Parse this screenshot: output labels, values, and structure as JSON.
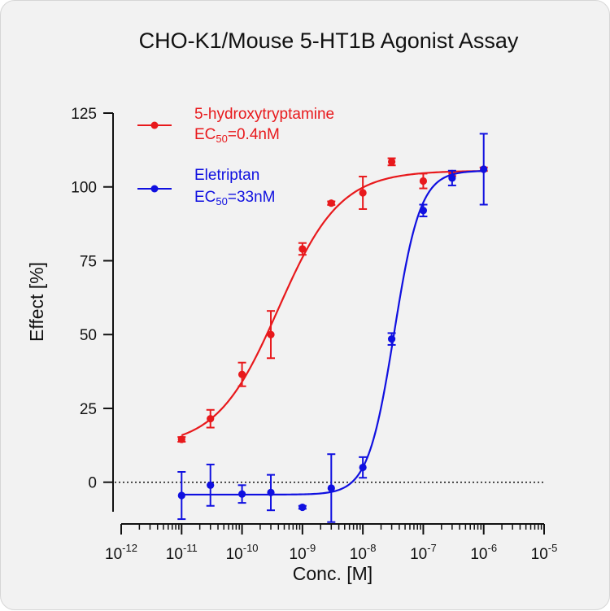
{
  "chart_data": {
    "type": "line",
    "title": "CHO-K1/Mouse 5-HT1B Agonist Assay",
    "xlabel": "Conc. [M]",
    "ylabel": "Effect [%]",
    "x_scale": "log",
    "xlim": [
      1e-12,
      1e-05
    ],
    "ylim": [
      -10,
      125
    ],
    "y_ticks": [
      0,
      25,
      50,
      75,
      100,
      125
    ],
    "x_tick_exponents": [
      -12,
      -11,
      -10,
      -9,
      -8,
      -7,
      -6,
      -5
    ],
    "x_tick_base": "10",
    "reference_line": 0,
    "grid": false,
    "legend_position": "top-left",
    "series": [
      {
        "name": "5-hydroxytryptamine",
        "ec50_label_prefix": "EC",
        "ec50_label_sub": "50",
        "ec50_label_value": "=0.4nM",
        "color": "#e8191c",
        "x": [
          1e-11,
          3e-11,
          1e-10,
          3e-10,
          1e-09,
          3e-09,
          1e-08,
          3e-08,
          1e-07,
          3e-07,
          1e-06
        ],
        "y": [
          14.5,
          21.5,
          36.5,
          50.0,
          79.0,
          94.5,
          98.0,
          108.5,
          102.0,
          104.5,
          106.0
        ],
        "err": [
          0.8,
          3.0,
          4.0,
          8.0,
          2.0,
          0.6,
          5.5,
          1.2,
          2.5,
          0.8,
          0.6
        ],
        "fit": {
          "bottom": 12.0,
          "top": 105.5,
          "ec50": 4e-10,
          "hill": 0.85
        }
      },
      {
        "name": "Eletriptan",
        "ec50_label_prefix": "EC",
        "ec50_label_sub": "50",
        "ec50_label_value": "=33nM",
        "color": "#1010e0",
        "x": [
          1e-11,
          3e-11,
          1e-10,
          3e-10,
          1e-09,
          3e-09,
          1e-08,
          3e-08,
          1e-07,
          3e-07,
          1e-06
        ],
        "y": [
          -4.5,
          -1.0,
          -4.0,
          -3.5,
          -8.5,
          -2.0,
          5.0,
          48.5,
          92.0,
          103.0,
          106.0
        ],
        "err": [
          8.0,
          7.0,
          3.0,
          6.0,
          0.5,
          11.5,
          3.5,
          2.0,
          2.0,
          2.5,
          12.0
        ],
        "fit": {
          "bottom": -4.2,
          "top": 105.5,
          "ec50": 3.3e-08,
          "hill": 2.0
        }
      }
    ]
  }
}
